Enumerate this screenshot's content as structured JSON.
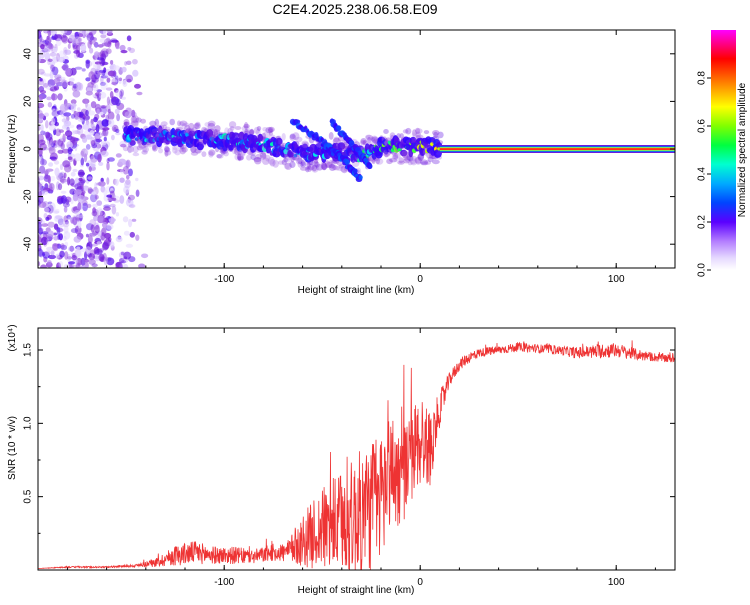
{
  "title": "C2E4.2025.238.06.58.E09",
  "colors": {
    "snr_line": "#ee3333",
    "axis": "#000000",
    "background": "#ffffff"
  },
  "chart_data": [
    {
      "type": "heatmap",
      "name": "spectrogram",
      "xlabel": "Height of straight line (km)",
      "ylabel": "Frequency (Hz)",
      "xlim": [
        -195,
        130
      ],
      "ylim": [
        -50,
        50
      ],
      "x_ticks": [
        -100,
        0,
        100
      ],
      "x_tick_labels": [
        "-100",
        "0",
        "100"
      ],
      "y_ticks": [
        -40,
        -20,
        0,
        20,
        40
      ],
      "y_tick_labels": [
        "-40",
        "-20",
        "0",
        "20",
        "40"
      ],
      "colorbar": {
        "label": "Normalized spectral amplitude",
        "range": [
          0,
          1
        ],
        "ticks": [
          0.0,
          0.2,
          0.4,
          0.6,
          0.8
        ],
        "tick_labels": [
          "0.0",
          "0.2",
          "0.4",
          "0.6",
          "0.8"
        ],
        "colormap": [
          "#ffffff",
          "#d9c7ff",
          "#7a1fd6",
          "#3300ff",
          "#0070ff",
          "#00e0ff",
          "#00ff60",
          "#a0ff00",
          "#ffff00",
          "#ff8000",
          "#ff0000",
          "#ff00ff"
        ]
      },
      "noise_region": {
        "x_range": [
          -195,
          -140
        ],
        "amplitude": [
          0.05,
          0.25
        ]
      },
      "signal_track": [
        {
          "x": -150,
          "freq": 6,
          "amp": 0.35
        },
        {
          "x": -130,
          "freq": 5,
          "amp": 0.38
        },
        {
          "x": -110,
          "freq": 4,
          "amp": 0.4
        },
        {
          "x": -90,
          "freq": 3,
          "amp": 0.4
        },
        {
          "x": -75,
          "freq": 1,
          "amp": 0.42
        },
        {
          "x": -60,
          "freq": -2,
          "amp": 0.4
        },
        {
          "x": -45,
          "freq": -1,
          "amp": 0.42
        },
        {
          "x": -30,
          "freq": -3,
          "amp": 0.45
        },
        {
          "x": -20,
          "freq": 1,
          "amp": 0.5
        },
        {
          "x": -10,
          "freq": 1,
          "amp": 0.55
        },
        {
          "x": 0,
          "freq": 1,
          "amp": 0.6
        },
        {
          "x": 10,
          "freq": 1,
          "amp": 0.7
        }
      ],
      "branches": [
        {
          "x": [
            -65,
            -50,
            -40,
            -30
          ],
          "freq": [
            12,
            3,
            -4,
            -13
          ],
          "amp": 0.3
        },
        {
          "x": [
            -45,
            -35,
            -25
          ],
          "freq": [
            11,
            2,
            -8
          ],
          "amp": 0.3
        }
      ],
      "steady_line": {
        "x_range": [
          10,
          130
        ],
        "freq": 0,
        "amp": 1.0
      }
    },
    {
      "type": "line",
      "name": "snr",
      "xlabel": "Height of straight line (km)",
      "ylabel": "SNR (10 * v/v)",
      "scale_label": "(x10⁴)",
      "xlim": [
        -195,
        130
      ],
      "ylim": [
        0,
        1.65
      ],
      "x_ticks": [
        -100,
        0,
        100
      ],
      "x_tick_labels": [
        "-100",
        "0",
        "100"
      ],
      "y_ticks": [
        0.5,
        1.0,
        1.5
      ],
      "y_tick_labels": [
        "0.5",
        "1.0",
        "1.5"
      ],
      "series": [
        {
          "name": "SNR",
          "x": [
            -195,
            -180,
            -160,
            -145,
            -135,
            -125,
            -115,
            -105,
            -95,
            -85,
            -75,
            -68,
            -60,
            -50,
            -40,
            -30,
            -20,
            -15,
            -10,
            -5,
            0,
            5,
            10,
            15,
            20,
            25,
            30,
            40,
            50,
            60,
            70,
            80,
            90,
            100,
            110,
            120,
            130
          ],
          "y": [
            0.01,
            0.02,
            0.02,
            0.03,
            0.05,
            0.1,
            0.12,
            0.1,
            0.1,
            0.09,
            0.12,
            0.12,
            0.2,
            0.28,
            0.32,
            0.38,
            0.5,
            0.7,
            0.62,
            0.75,
            0.9,
            0.82,
            1.1,
            1.3,
            1.4,
            1.45,
            1.48,
            1.5,
            1.52,
            1.51,
            1.5,
            1.48,
            1.49,
            1.5,
            1.47,
            1.45,
            1.44
          ],
          "noise": [
            0.0,
            0.005,
            0.005,
            0.01,
            0.03,
            0.07,
            0.08,
            0.06,
            0.06,
            0.05,
            0.06,
            0.07,
            0.18,
            0.28,
            0.35,
            0.45,
            0.45,
            0.4,
            0.35,
            0.3,
            0.35,
            0.25,
            0.12,
            0.05,
            0.04,
            0.04,
            0.03,
            0.03,
            0.03,
            0.03,
            0.03,
            0.04,
            0.05,
            0.05,
            0.04,
            0.03,
            0.03
          ]
        }
      ]
    }
  ]
}
